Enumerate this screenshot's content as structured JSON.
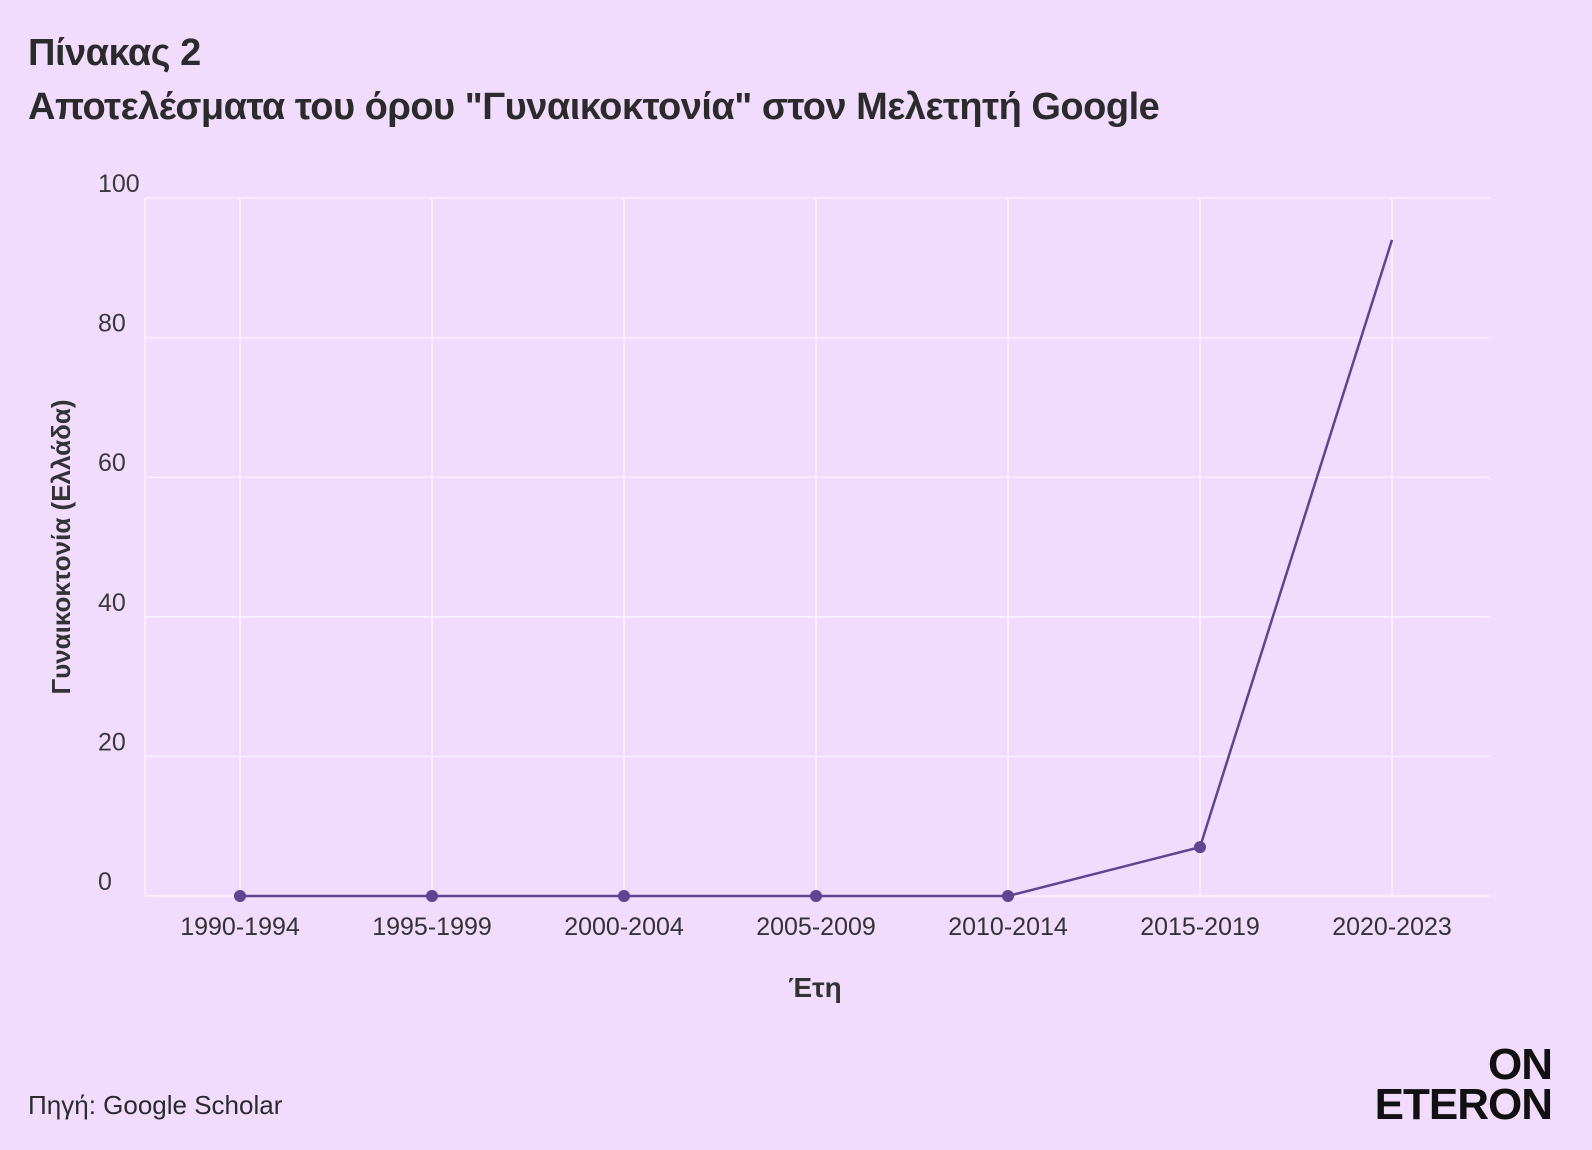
{
  "header": {
    "title_line_1": "Πίνακας 2",
    "title_line_2": "Αποτελέσματα του όρου \"Γυναικοκτονία\" στον Μελετητή Google"
  },
  "footer": {
    "source": "Πηγή: Google Scholar",
    "logo_line_1": "ON",
    "logo_line_2": "ETERON"
  },
  "colors": {
    "background": "#f2dcfd",
    "line": "#5e4590",
    "grid": "#fbf2ff",
    "text": "#2b2b2b"
  },
  "chart_data": {
    "type": "line",
    "title": "",
    "xlabel": "Έτη",
    "ylabel": "Γυναικοκτονία (Ελλάδα)",
    "categories": [
      "1990-1994",
      "1995-1999",
      "2000-2004",
      "2005-2009",
      "2010-2014",
      "2015-2019",
      "2020-2023"
    ],
    "series": [
      {
        "values": [
          0,
          0,
          0,
          0,
          0,
          7,
          94
        ],
        "markers": [
          true,
          true,
          true,
          true,
          true,
          true,
          false
        ]
      }
    ],
    "yticks": [
      0,
      20,
      40,
      60,
      80,
      100
    ],
    "ylim": [
      0,
      100
    ],
    "grid": true,
    "legend": "none"
  }
}
